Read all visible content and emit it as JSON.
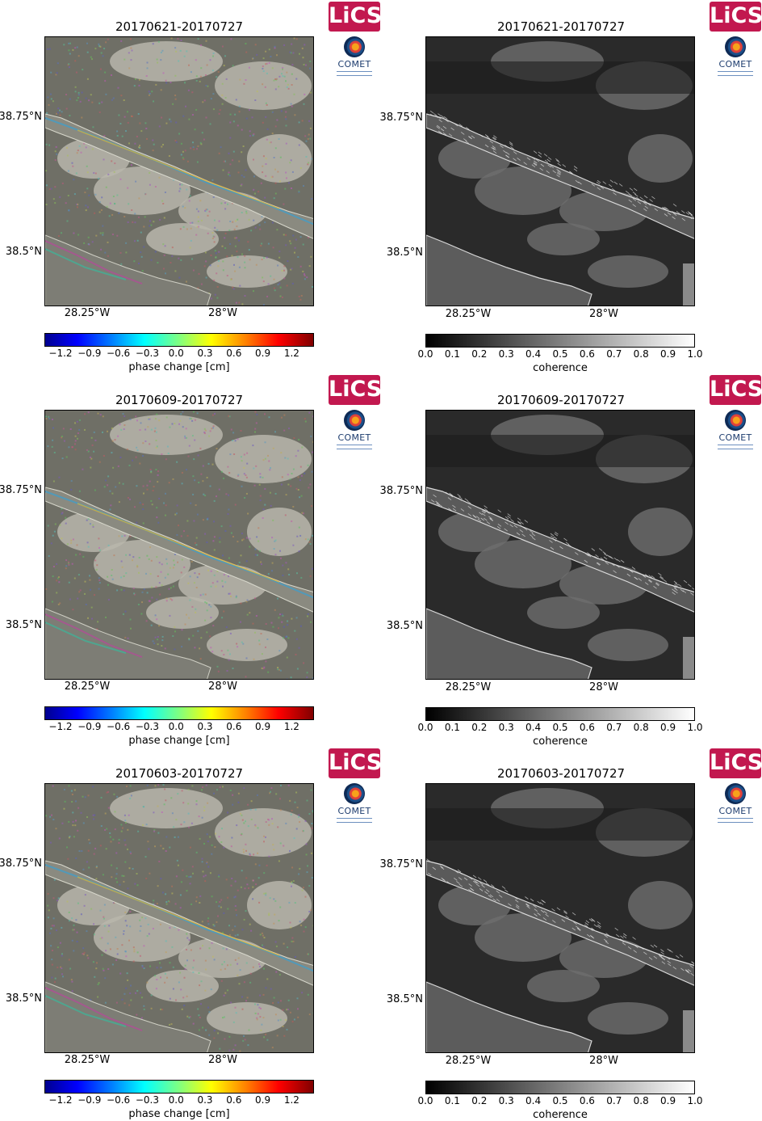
{
  "logos": {
    "lics": "LiCS",
    "comet": "COMET"
  },
  "phase_colorbar": {
    "label": "phase change [cm]",
    "ticks": [
      "−1.2",
      "−0.9",
      "−0.6",
      "−0.3",
      "0.0",
      "0.3",
      "0.6",
      "0.9",
      "1.2"
    ]
  },
  "coherence_colorbar": {
    "label": "coherence",
    "ticks": [
      "0.0",
      "0.1",
      "0.2",
      "0.3",
      "0.4",
      "0.5",
      "0.6",
      "0.7",
      "0.8",
      "0.9",
      "1.0"
    ]
  },
  "axes": {
    "lat_ticks": [
      "38.75°N",
      "38.5°N"
    ],
    "lon_ticks": [
      "28.25°W",
      "28°W"
    ]
  },
  "rows": [
    {
      "phase_title": "20170621-20170727",
      "coherence_title": "20170621-20170727"
    },
    {
      "phase_title": "20170609-20170727",
      "coherence_title": "20170609-20170727"
    },
    {
      "phase_title": "20170603-20170727",
      "coherence_title": "20170603-20170727"
    }
  ]
}
